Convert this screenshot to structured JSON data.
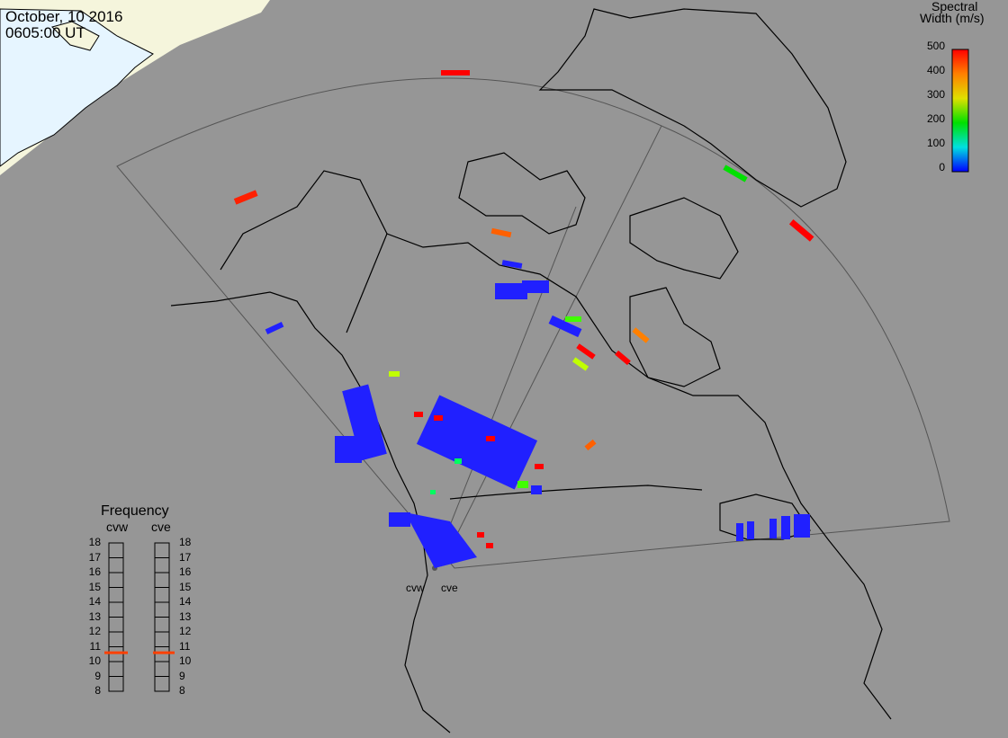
{
  "header": {
    "date": "October, 10 2016",
    "time": "0605:00 UT"
  },
  "colorbar": {
    "title_line1": "Spectral",
    "title_line2": "Width (m/s)",
    "ticks": [
      "500",
      "400",
      "300",
      "200",
      "100",
      "0"
    ],
    "gradient_colors": [
      "#ff0000",
      "#ff8000",
      "#e0e000",
      "#00e000",
      "#00e0e0",
      "#0040ff",
      "#0000ff"
    ]
  },
  "radars": {
    "west_label": "cvw",
    "east_label": "cve"
  },
  "frequency_panel": {
    "title": "Frequency",
    "col_left": "cvw",
    "col_right": "cve",
    "scale": [
      "18",
      "17",
      "16",
      "15",
      "14",
      "13",
      "12",
      "11",
      "10",
      "9",
      "8"
    ],
    "cvw_marker_mhz": 10.6,
    "cve_marker_mhz": 10.6,
    "marker_color": "#ff4000"
  },
  "map_colors": {
    "background": "#969696",
    "sunlit": "#f5f5dc",
    "ice": "#e6f5ff",
    "coast": "#000000",
    "fov_outline": "#555555"
  }
}
